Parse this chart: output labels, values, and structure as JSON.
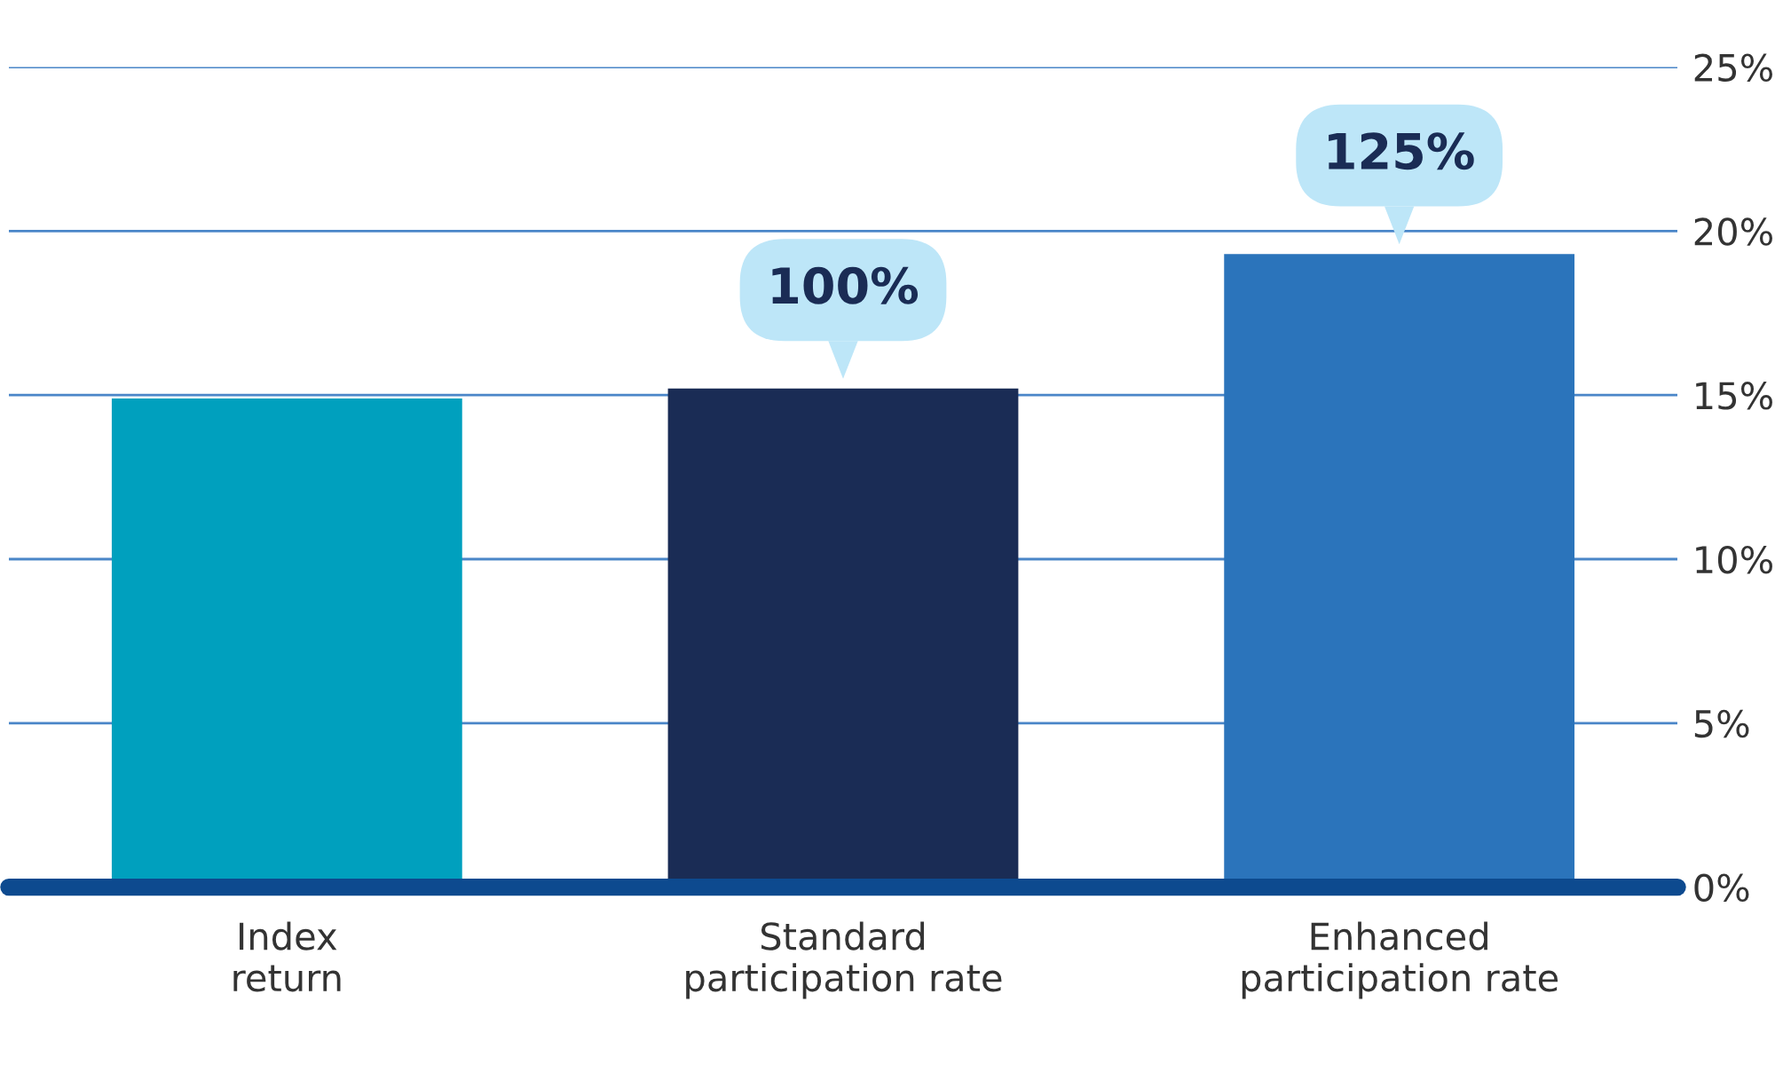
{
  "chart_data": {
    "type": "bar",
    "categories": [
      "Index\nreturn",
      "Standard\nparticipation rate",
      "Enhanced\nparticipation rate"
    ],
    "values": [
      14.9,
      15.2,
      19.3
    ],
    "colors": [
      "#00a0be",
      "#1a2c55",
      "#2b74bb"
    ],
    "ylim": [
      0,
      25
    ],
    "yticks": [
      {
        "value": 0,
        "label": "0%"
      },
      {
        "value": 5,
        "label": "5%"
      },
      {
        "value": 10,
        "label": "10%"
      },
      {
        "value": 15,
        "label": "15%"
      },
      {
        "value": 20,
        "label": "20%"
      },
      {
        "value": 25,
        "label": "25%"
      }
    ],
    "grid": "y",
    "annotations": [
      {
        "text": "100%",
        "x": "Standard\nparticipation rate",
        "y": 15.2
      },
      {
        "text": "125%",
        "x": "Enhanced\nparticipation rate",
        "y": 19.3
      }
    ]
  }
}
